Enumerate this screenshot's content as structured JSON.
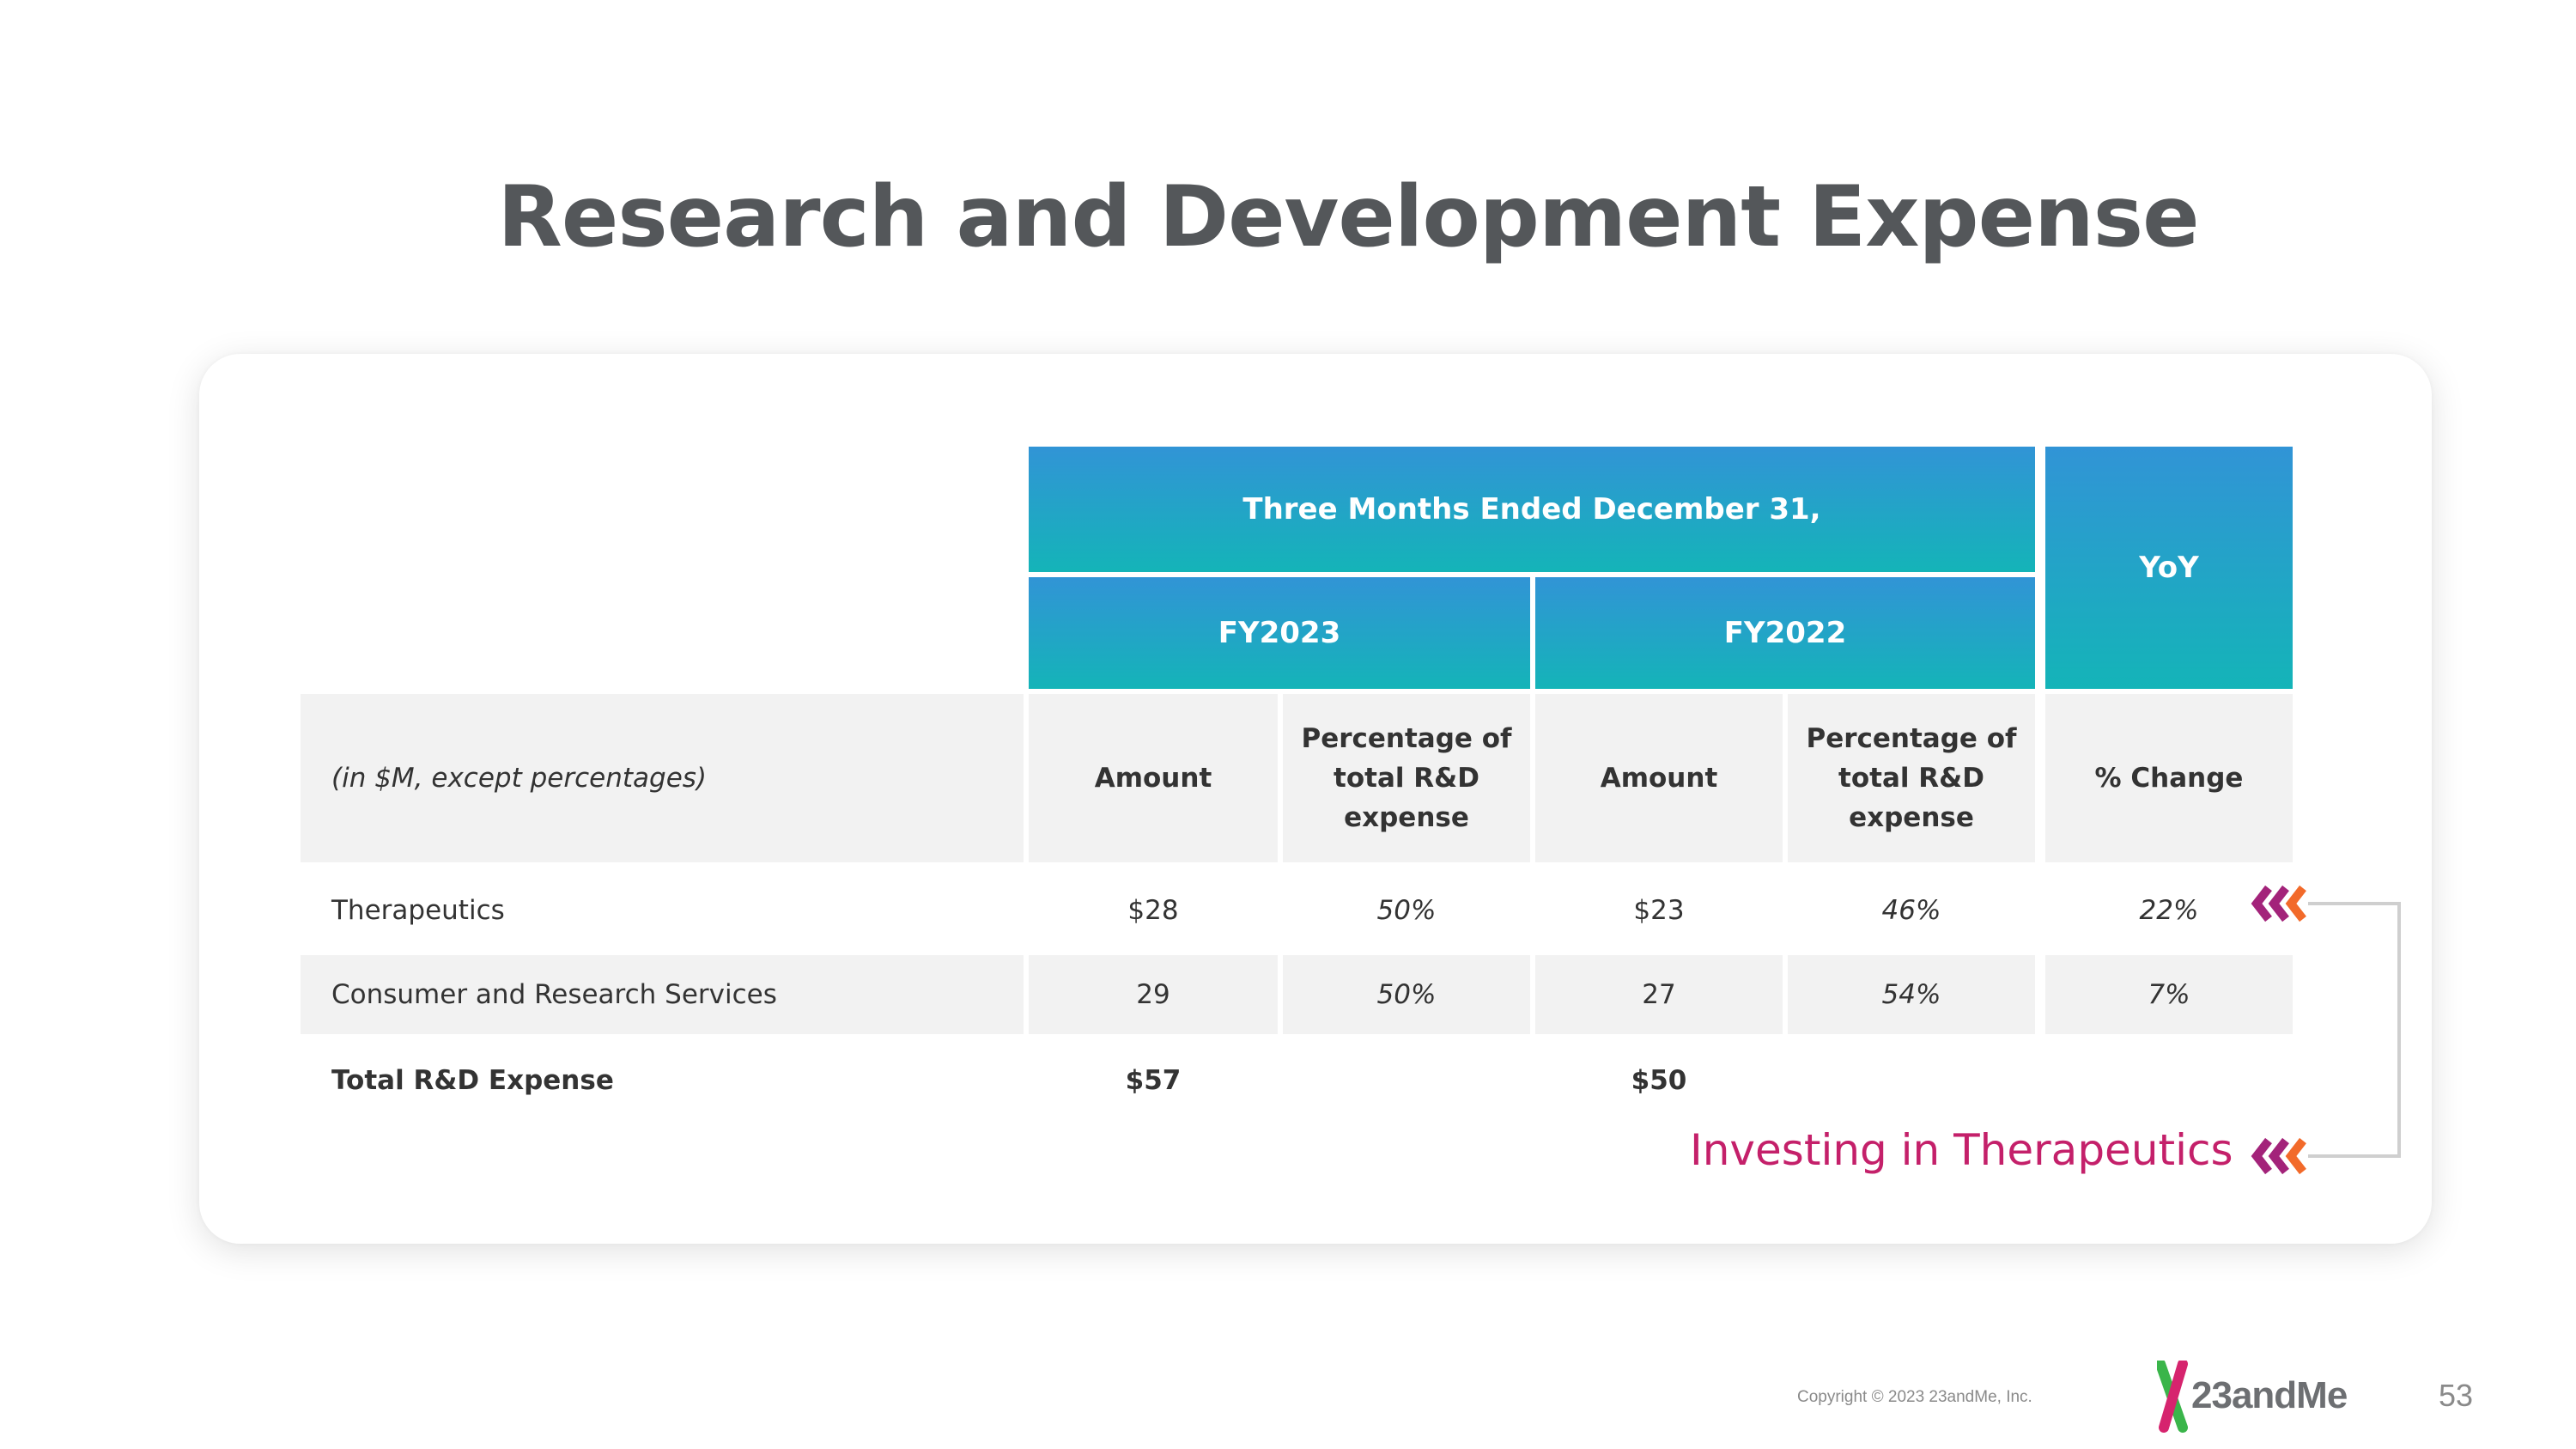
{
  "title": "Research and Development Expense",
  "table": {
    "group_header": "Three Months Ended December 31,",
    "yoy_header": "YoY",
    "fy2023": "FY2023",
    "fy2022": "FY2022",
    "units_label": "(in $M, except percentages)",
    "col_amount": "Amount",
    "col_pct": "Percentage of total R&D expense",
    "col_change": "% Change",
    "rows": [
      {
        "label": "Therapeutics",
        "fy23_amount": "$28",
        "fy23_pct": "50%",
        "fy22_amount": "$23",
        "fy22_pct": "46%",
        "change": "22%"
      },
      {
        "label": "Consumer and Research Services",
        "fy23_amount": "29",
        "fy23_pct": "50%",
        "fy22_amount": "27",
        "fy22_pct": "54%",
        "change": "7%"
      },
      {
        "label": "Total R&D Expense",
        "fy23_amount": "$57",
        "fy23_pct": "",
        "fy22_amount": "$50",
        "fy22_pct": "",
        "change": ""
      }
    ]
  },
  "callout": "Investing in Therapeutics",
  "footer": {
    "copyright": "Copyright © 2023 23andMe, Inc.",
    "logo": "23andMe",
    "page_number": "53"
  },
  "colors": {
    "header_top": "#3194d6",
    "header_bottom": "#14b4b8",
    "callout": "#c4206a",
    "arrow_magenta": "#a3237a",
    "arrow_orange": "#f26a2a"
  }
}
